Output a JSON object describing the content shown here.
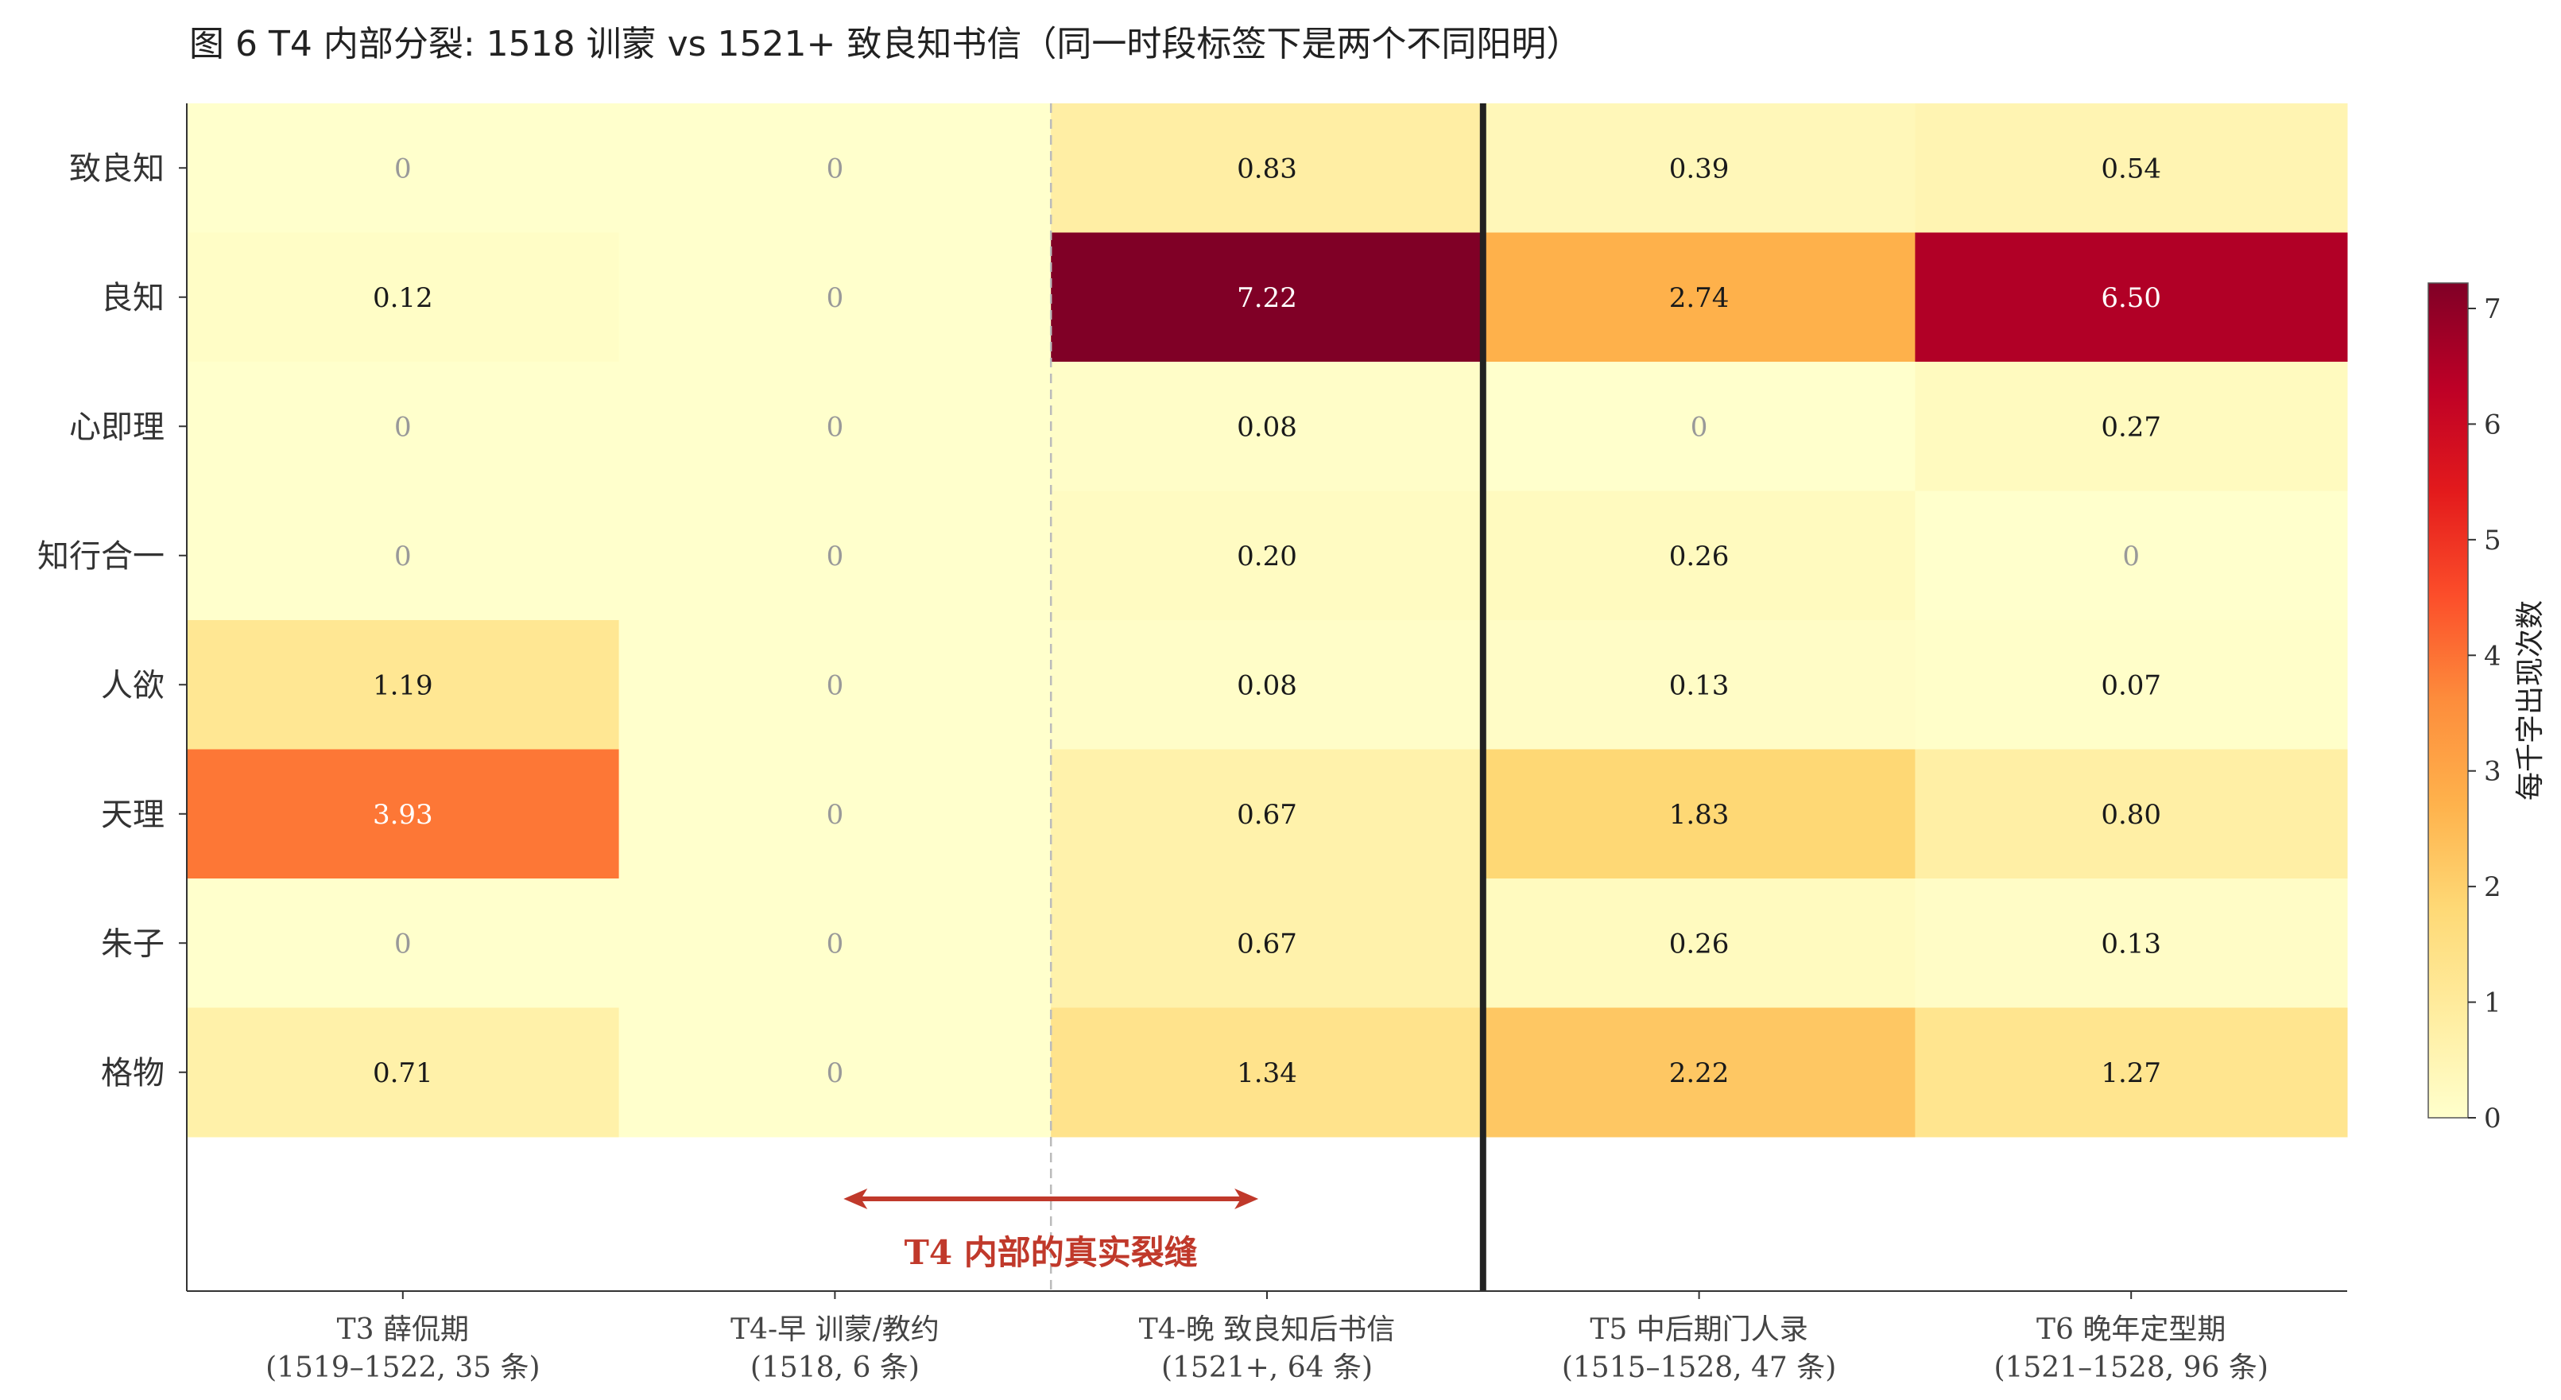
{
  "chart_data": {
    "type": "heatmap",
    "title": "图 6  T4 内部分裂: 1518 训蒙 vs 1521+ 致良知书信（同一时段标签下是两个不同阳明）",
    "rows": [
      "致良知",
      "良知",
      "心即理",
      "知行合一",
      "人欲",
      "天理",
      "朱子",
      "格物"
    ],
    "columns": [
      {
        "line1": "T3 薛侃期",
        "line2": "(1519–1522, 35 条)"
      },
      {
        "line1": "T4-早 训蒙/教约",
        "line2": "(1518, 6 条)"
      },
      {
        "line1": "T4-晚 致良知后书信",
        "line2": "(1521+, 64 条)"
      },
      {
        "line1": "T5 中后期门人录",
        "line2": "(1515–1528, 47 条)"
      },
      {
        "line1": "T6 晚年定型期",
        "line2": "(1521–1528, 96 条)"
      }
    ],
    "values": [
      [
        0,
        0,
        0.83,
        0.39,
        0.54
      ],
      [
        0.12,
        0,
        7.22,
        2.74,
        6.5
      ],
      [
        0,
        0,
        0.08,
        0,
        0.27
      ],
      [
        0,
        0,
        0.2,
        0.26,
        0
      ],
      [
        1.19,
        0,
        0.08,
        0.13,
        0.07
      ],
      [
        3.93,
        0,
        0.67,
        1.83,
        0.8
      ],
      [
        0,
        0,
        0.67,
        0.26,
        0.13
      ],
      [
        0.71,
        0,
        1.34,
        2.22,
        1.27
      ]
    ],
    "labels": [
      [
        "0",
        "0",
        "0.83",
        "0.39",
        "0.54"
      ],
      [
        "0.12",
        "0",
        "7.22",
        "2.74",
        "6.50"
      ],
      [
        "0",
        "0",
        "0.08",
        "0",
        "0.27"
      ],
      [
        "0",
        "0",
        "0.20",
        "0.26",
        "0"
      ],
      [
        "1.19",
        "0",
        "0.08",
        "0.13",
        "0.07"
      ],
      [
        "3.93",
        "0",
        "0.67",
        "1.83",
        "0.80"
      ],
      [
        "0",
        "0",
        "0.67",
        "0.26",
        "0.13"
      ],
      [
        "0.71",
        "0",
        "1.34",
        "2.22",
        "1.27"
      ]
    ],
    "colorbar": {
      "label": "每千字出现次数",
      "min": 0,
      "max": 7.22,
      "ticks": [
        0,
        1,
        2,
        3,
        4,
        5,
        6,
        7
      ],
      "colormap": [
        "#ffffcc",
        "#ffeda0",
        "#fed976",
        "#feb24c",
        "#fd8d3c",
        "#fc4e2a",
        "#e31a1c",
        "#bd0026",
        "#800026"
      ]
    },
    "dashed_divider_between_columns": [
      1,
      2
    ],
    "solid_divider_between_columns": [
      2,
      3
    ],
    "annotation": {
      "text": "T4 内部的真实裂缝",
      "color": "#c0392b",
      "arrow": "double-headed, spanning T4-早 to T4-晚"
    }
  }
}
